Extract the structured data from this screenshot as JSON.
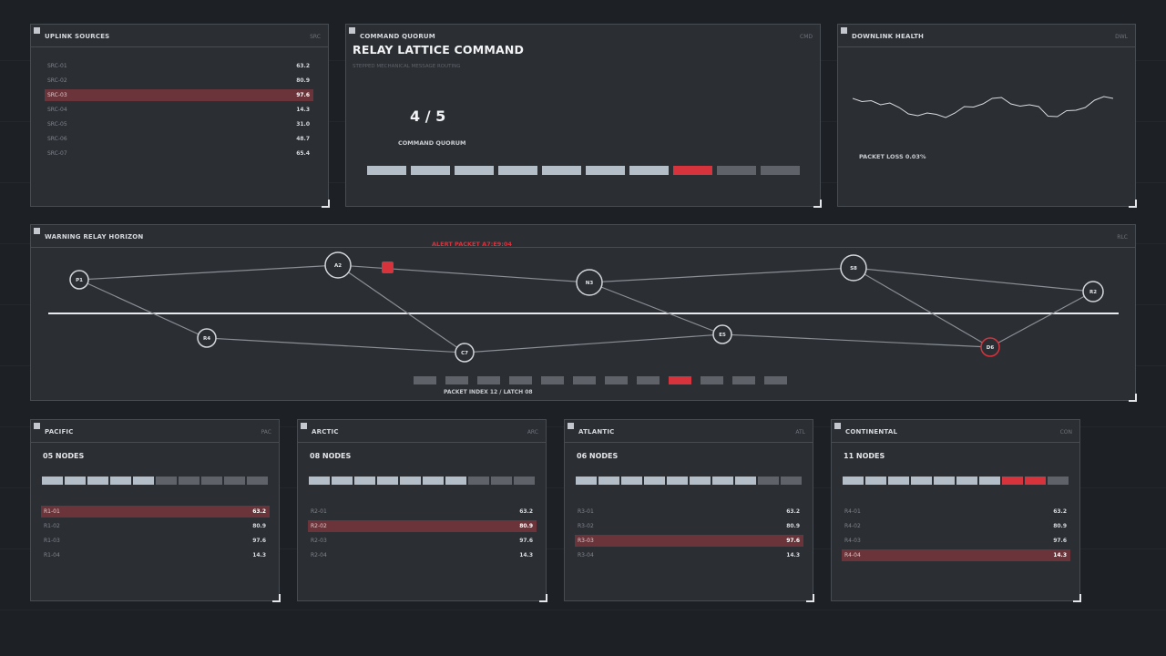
{
  "colors": {
    "accent": "#d6333d",
    "bar_on": "#b3bec9",
    "bar_off": "#5f6369",
    "highlight_row": "#6a343a"
  },
  "uplink": {
    "title": "UPLINK SOURCES",
    "code": "SRC",
    "rows": [
      {
        "label": "SRC-01",
        "value": "63.2"
      },
      {
        "label": "SRC-02",
        "value": "80.9"
      },
      {
        "label": "SRC-03",
        "value": "97.6"
      },
      {
        "label": "SRC-04",
        "value": "14.3"
      },
      {
        "label": "SRC-05",
        "value": "31.0"
      },
      {
        "label": "SRC-06",
        "value": "48.7"
      },
      {
        "label": "SRC-07",
        "value": "65.4"
      }
    ],
    "highlighted_index": 2
  },
  "quorum": {
    "header": "COMMAND QUORUM",
    "code": "CMD",
    "title": "RELAY LATTICE COMMAND",
    "subtitle": "STEPPED MECHANICAL MESSAGE ROUTING",
    "ratio": "4 / 5",
    "ratio_label": "COMMAND QUORUM",
    "segments": [
      "on",
      "on",
      "on",
      "on",
      "on",
      "on",
      "on",
      "alert",
      "off",
      "off"
    ]
  },
  "downlink": {
    "title": "DOWNLINK HEALTH",
    "code": "DWL",
    "packet_loss": "PACKET LOSS 0.03%",
    "trace": [
      0.62,
      0.55,
      0.57,
      0.48,
      0.52,
      0.42,
      0.28,
      0.24,
      0.3,
      0.27,
      0.2,
      0.3,
      0.44,
      0.43,
      0.5,
      0.62,
      0.64,
      0.5,
      0.45,
      0.48,
      0.44,
      0.23,
      0.22,
      0.35,
      0.36,
      0.42,
      0.58,
      0.66,
      0.62
    ]
  },
  "horizon": {
    "title": "WARNING RELAY HORIZON",
    "code": "RLC",
    "alert_label": "ALERT PACKET  A7:E9:04",
    "nodes": [
      {
        "id": "P1",
        "alert": false
      },
      {
        "id": "A2",
        "alert": false
      },
      {
        "id": "R4",
        "alert": false
      },
      {
        "id": "C7",
        "alert": false
      },
      {
        "id": "N3",
        "alert": false
      },
      {
        "id": "E5",
        "alert": false
      },
      {
        "id": "S8",
        "alert": false
      },
      {
        "id": "D6",
        "alert": true
      },
      {
        "id": "R2",
        "alert": false
      }
    ],
    "packet_index": "PACKET INDEX 12 / LATCH 08",
    "packet_segments": [
      "off",
      "off",
      "off",
      "off",
      "off",
      "off",
      "off",
      "off",
      "alert",
      "off",
      "off",
      "off"
    ]
  },
  "regions": [
    {
      "name": "PACIFIC",
      "code": "PAC",
      "nodes": "05 NODES",
      "segments": [
        "on",
        "on",
        "on",
        "on",
        "on",
        "off",
        "off",
        "off",
        "off",
        "off"
      ],
      "rows": [
        {
          "label": "R1-01",
          "value": "63.2"
        },
        {
          "label": "R1-02",
          "value": "80.9"
        },
        {
          "label": "R1-03",
          "value": "97.6"
        },
        {
          "label": "R1-04",
          "value": "14.3"
        }
      ],
      "highlighted_index": 0
    },
    {
      "name": "ARCTIC",
      "code": "ARC",
      "nodes": "08 NODES",
      "segments": [
        "on",
        "on",
        "on",
        "on",
        "on",
        "on",
        "on",
        "off",
        "off",
        "off"
      ],
      "rows": [
        {
          "label": "R2-01",
          "value": "63.2"
        },
        {
          "label": "R2-02",
          "value": "80.9"
        },
        {
          "label": "R2-03",
          "value": "97.6"
        },
        {
          "label": "R2-04",
          "value": "14.3"
        }
      ],
      "highlighted_index": 1
    },
    {
      "name": "ATLANTIC",
      "code": "ATL",
      "nodes": "06 NODES",
      "segments": [
        "on",
        "on",
        "on",
        "on",
        "on",
        "on",
        "on",
        "on",
        "off",
        "off"
      ],
      "rows": [
        {
          "label": "R3-01",
          "value": "63.2"
        },
        {
          "label": "R3-02",
          "value": "80.9"
        },
        {
          "label": "R3-03",
          "value": "97.6"
        },
        {
          "label": "R3-04",
          "value": "14.3"
        }
      ],
      "highlighted_index": 2
    },
    {
      "name": "CONTINENTAL",
      "code": "CON",
      "nodes": "11 NODES",
      "segments": [
        "on",
        "on",
        "on",
        "on",
        "on",
        "on",
        "on",
        "alert",
        "alert",
        "off"
      ],
      "rows": [
        {
          "label": "R4-01",
          "value": "63.2"
        },
        {
          "label": "R4-02",
          "value": "80.9"
        },
        {
          "label": "R4-03",
          "value": "97.6"
        },
        {
          "label": "R4-04",
          "value": "14.3"
        }
      ],
      "highlighted_index": 3
    }
  ]
}
